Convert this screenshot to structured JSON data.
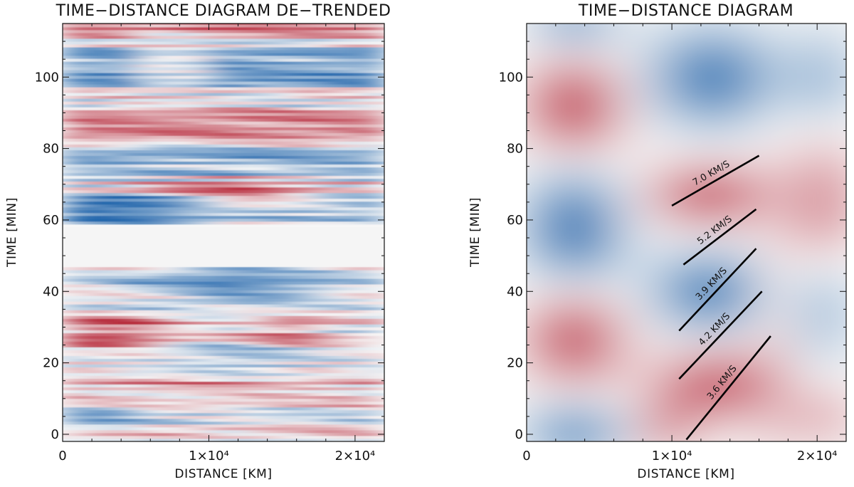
{
  "chart_data": [
    {
      "type": "heatmap",
      "title": "TIME−DISTANCE DIAGRAM DE−TRENDED",
      "xlabel": "DISTANCE [KM]",
      "ylabel": "TIME [MIN]",
      "xlim": [
        0,
        22000
      ],
      "ylim": [
        -2,
        115
      ],
      "xticks": [
        {
          "value": 0,
          "label": "0"
        },
        {
          "value": 10000,
          "label": "1×10⁴"
        },
        {
          "value": 20000,
          "label": "2×10⁴"
        }
      ],
      "yticks": [
        {
          "value": 0,
          "label": "0"
        },
        {
          "value": 20,
          "label": "20"
        },
        {
          "value": 40,
          "label": "40"
        },
        {
          "value": 60,
          "label": "60"
        },
        {
          "value": 80,
          "label": "80"
        },
        {
          "value": 100,
          "label": "100"
        }
      ],
      "colormap": {
        "negative": "#2166ac",
        "zero": "#f7f7f7",
        "positive": "#b2182b"
      },
      "gap": [
        47,
        58
      ]
    },
    {
      "type": "heatmap",
      "title": "TIME−DISTANCE DIAGRAM",
      "xlabel": "DISTANCE [KM]",
      "ylabel": "TIME [MIN]",
      "xlim": [
        0,
        22000
      ],
      "ylim": [
        -2,
        115
      ],
      "xticks": [
        {
          "value": 0,
          "label": "0"
        },
        {
          "value": 10000,
          "label": "1×10⁴"
        },
        {
          "value": 20000,
          "label": "2×10⁴"
        }
      ],
      "yticks": [
        {
          "value": 0,
          "label": "0"
        },
        {
          "value": 20,
          "label": "20"
        },
        {
          "value": 40,
          "label": "40"
        },
        {
          "value": 60,
          "label": "60"
        },
        {
          "value": 80,
          "label": "80"
        },
        {
          "value": 100,
          "label": "100"
        }
      ],
      "colormap": {
        "negative": "#2166ac",
        "zero": "#f7f7f7",
        "positive": "#b2182b"
      },
      "velocity_fits": [
        {
          "label": "7.0 KM/S",
          "x0": 10000,
          "t0": 64,
          "x1": 16000,
          "t1": 78
        },
        {
          "label": "5.2 KM/S",
          "x0": 10800,
          "t0": 47.5,
          "x1": 15800,
          "t1": 63
        },
        {
          "label": "3.9 KM/S",
          "x0": 10500,
          "t0": 29,
          "x1": 15800,
          "t1": 52
        },
        {
          "label": "4.2 KM/S",
          "x0": 10500,
          "t0": 15.5,
          "x1": 16200,
          "t1": 40
        },
        {
          "label": "3.6 KM/S",
          "x0": 11000,
          "t0": -1.5,
          "x1": 16800,
          "t1": 27.5
        }
      ]
    }
  ]
}
